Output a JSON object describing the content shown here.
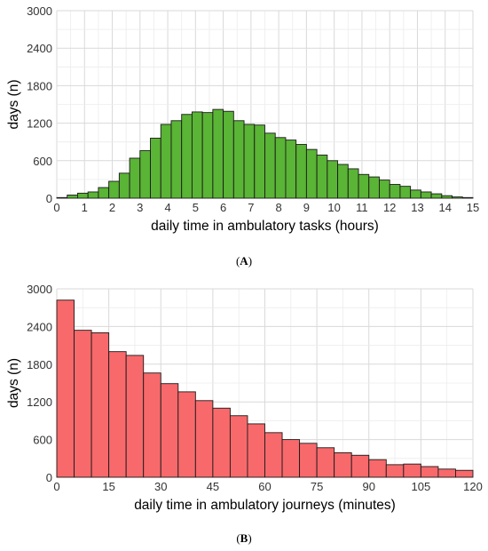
{
  "panels": [
    {
      "caption_prefix": "(",
      "caption_letter": "A",
      "caption_suffix": ")"
    },
    {
      "caption_prefix": "(",
      "caption_letter": "B",
      "caption_suffix": ")"
    }
  ],
  "chart_data": [
    {
      "type": "bar",
      "title": "",
      "xlabel": "daily time in ambulatory tasks (hours)",
      "ylabel": "days (n)",
      "bin_width": 0.375,
      "xlim": [
        0,
        15
      ],
      "ylim": [
        0,
        3000
      ],
      "xticks": [
        "0",
        "1",
        "2",
        "3",
        "4",
        "5",
        "6",
        "7",
        "8",
        "9",
        "10",
        "11",
        "12",
        "13",
        "14",
        "15"
      ],
      "yticks": [
        "0",
        "600",
        "1200",
        "1800",
        "2400",
        "3000"
      ],
      "grid": true,
      "bar_color": "#5ab435",
      "bin_starts": [
        0,
        0.375,
        0.75,
        1.125,
        1.5,
        1.875,
        2.25,
        2.625,
        3.0,
        3.375,
        3.75,
        4.125,
        4.5,
        4.875,
        5.25,
        5.625,
        6.0,
        6.375,
        6.75,
        7.125,
        7.5,
        7.875,
        8.25,
        8.625,
        9.0,
        9.375,
        9.75,
        10.125,
        10.5,
        10.875,
        11.25,
        11.625,
        12.0,
        12.375,
        12.75,
        13.125,
        13.5,
        13.875,
        14.25,
        14.625
      ],
      "values": [
        10,
        50,
        80,
        100,
        170,
        270,
        400,
        640,
        760,
        960,
        1180,
        1240,
        1340,
        1380,
        1370,
        1420,
        1390,
        1240,
        1180,
        1170,
        1040,
        970,
        930,
        860,
        780,
        690,
        600,
        540,
        470,
        380,
        340,
        290,
        220,
        190,
        130,
        100,
        70,
        40,
        20,
        10
      ]
    },
    {
      "type": "bar",
      "title": "",
      "xlabel": "daily time in ambulatory journeys (minutes)",
      "ylabel": "days (n)",
      "bin_width": 5,
      "xlim": [
        0,
        120
      ],
      "ylim": [
        0,
        3000
      ],
      "xticks": [
        "0",
        "15",
        "30",
        "45",
        "60",
        "75",
        "90",
        "105",
        "120"
      ],
      "yticks": [
        "0",
        "600",
        "1200",
        "1800",
        "2400",
        "3000"
      ],
      "grid": true,
      "bar_color": "#f8696b",
      "bin_starts": [
        0,
        5,
        10,
        15,
        20,
        25,
        30,
        35,
        40,
        45,
        50,
        55,
        60,
        65,
        70,
        75,
        80,
        85,
        90,
        95,
        100,
        105,
        110,
        115
      ],
      "values": [
        2820,
        2340,
        2300,
        2000,
        1940,
        1660,
        1490,
        1360,
        1220,
        1100,
        980,
        850,
        710,
        600,
        540,
        470,
        390,
        350,
        280,
        200,
        210,
        170,
        130,
        110
      ]
    }
  ]
}
